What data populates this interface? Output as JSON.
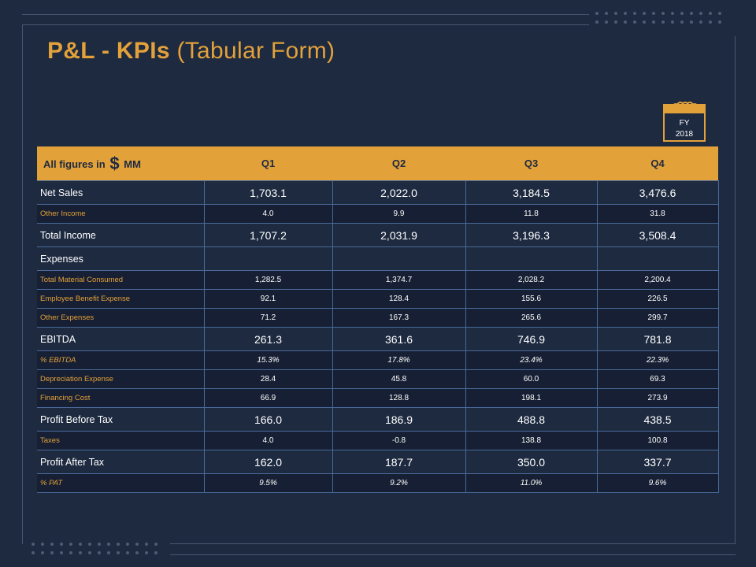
{
  "title": {
    "bold": "P&L - KPIs",
    "light": "(Tabular Form)"
  },
  "badge": {
    "line1": "FY",
    "line2": "2018"
  },
  "table": {
    "header": {
      "prefix": "All figures in",
      "symbol": "$",
      "suffix": "MM",
      "quarters": [
        "Q1",
        "Q2",
        "Q3",
        "Q4"
      ]
    },
    "rows": [
      {
        "label": "Net Sales",
        "kind": "major",
        "values": [
          "1,703.1",
          "2,022.0",
          "3,184.5",
          "3,476.6"
        ]
      },
      {
        "label": "Other Income",
        "kind": "minor",
        "values": [
          "4.0",
          "9.9",
          "11.8",
          "31.8"
        ]
      },
      {
        "label": "Total Income",
        "kind": "major",
        "values": [
          "1,707.2",
          "2,031.9",
          "3,196.3",
          "3,508.4"
        ]
      },
      {
        "label": "Expenses",
        "kind": "exp",
        "values": [
          "",
          "",
          "",
          ""
        ]
      },
      {
        "label": "Total Material Consumed",
        "kind": "minor",
        "values": [
          "1,282.5",
          "1,374.7",
          "2,028.2",
          "2,200.4"
        ]
      },
      {
        "label": "Employee Benefit Expense",
        "kind": "minor",
        "values": [
          "92.1",
          "128.4",
          "155.6",
          "226.5"
        ]
      },
      {
        "label": "Other Expenses",
        "kind": "minor",
        "values": [
          "71.2",
          "167.3",
          "265.6",
          "299.7"
        ]
      },
      {
        "label": "EBITDA",
        "kind": "major",
        "values": [
          "261.3",
          "361.6",
          "746.9",
          "781.8"
        ]
      },
      {
        "label": "% EBITDA",
        "kind": "minor italic",
        "values": [
          "15.3%",
          "17.8%",
          "23.4%",
          "22.3%"
        ]
      },
      {
        "label": "Depreciation Expense",
        "kind": "minor",
        "values": [
          "28.4",
          "45.8",
          "60.0",
          "69.3"
        ]
      },
      {
        "label": "Financing Cost",
        "kind": "minor",
        "values": [
          "66.9",
          "128.8",
          "198.1",
          "273.9"
        ]
      },
      {
        "label": "Profit Before Tax",
        "kind": "major",
        "values": [
          "166.0",
          "186.9",
          "488.8",
          "438.5"
        ]
      },
      {
        "label": "Taxes",
        "kind": "minor",
        "values": [
          "4.0",
          "-0.8",
          "138.8",
          "100.8"
        ]
      },
      {
        "label": "Profit After Tax",
        "kind": "major",
        "values": [
          "162.0",
          "187.7",
          "350.0",
          "337.7"
        ]
      },
      {
        "label": "% PAT",
        "kind": "minor italic",
        "values": [
          "9.5%",
          "9.2%",
          "11.0%",
          "9.6%"
        ]
      }
    ]
  },
  "colors": {
    "background": "#1d2a40",
    "accent": "#e3a13a",
    "grid": "#4a6a9a"
  },
  "icons": {
    "badge": "calendar-icon"
  }
}
